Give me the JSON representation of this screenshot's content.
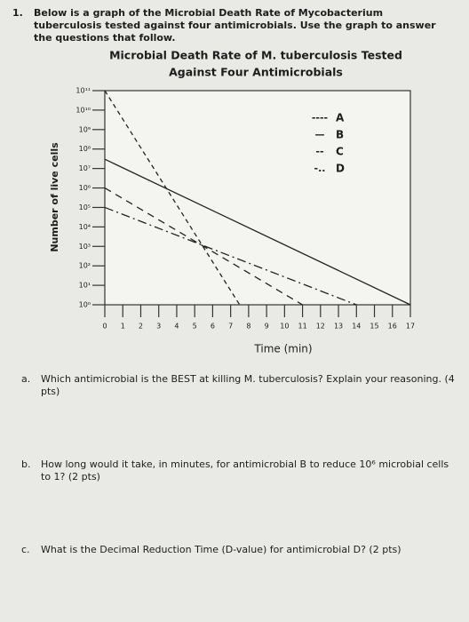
{
  "question": {
    "number": "1.",
    "text": "Below is a graph of the Microbial Death Rate of Mycobacterium tuberculosis tested against four antimicrobials. Use the graph to answer the questions that follow."
  },
  "chart_data": {
    "type": "line",
    "title": "Microbial Death Rate of M. tuberculosis Tested",
    "subtitle": "Against Four Antimicrobials",
    "x_label": "Time (min)",
    "y_label": "Number of live cells",
    "log_y": true,
    "xlim": [
      0,
      17
    ],
    "xticks": [
      0,
      1,
      2,
      3,
      4,
      5,
      6,
      7,
      8,
      9,
      10,
      11,
      12,
      13,
      14,
      15,
      16,
      17
    ],
    "ylim": [
      1,
      100000000000
    ],
    "yticks": [
      {
        "value": 1,
        "label": "10⁰"
      },
      {
        "value": 10,
        "label": "10¹"
      },
      {
        "value": 100,
        "label": "10²"
      },
      {
        "value": 1000,
        "label": "10³"
      },
      {
        "value": 10000,
        "label": "10⁴"
      },
      {
        "value": 100000,
        "label": "10⁵"
      },
      {
        "value": 1000000,
        "label": "10⁶"
      },
      {
        "value": 10000000,
        "label": "10⁷"
      },
      {
        "value": 100000000,
        "label": "10⁸"
      },
      {
        "value": 1000000000,
        "label": "10⁹"
      },
      {
        "value": 10000000000,
        "label": "10¹⁰"
      },
      {
        "value": 100000000000,
        "label": "10¹¹"
      }
    ],
    "series": [
      {
        "name": "A",
        "legend_symbol": "----",
        "dash": "5,4",
        "color": "#222",
        "x": [
          0,
          7.5
        ],
        "values": [
          100000000000,
          1
        ]
      },
      {
        "name": "B",
        "legend_symbol": "—",
        "dash": "none",
        "color": "#222",
        "x": [
          0,
          17
        ],
        "values": [
          30000000,
          1
        ]
      },
      {
        "name": "C",
        "legend_symbol": "--",
        "dash": "8,6",
        "color": "#222",
        "x": [
          0,
          11
        ],
        "values": [
          1000000,
          1
        ]
      },
      {
        "name": "D",
        "legend_symbol": "-..",
        "dash": "10,4,2,4",
        "color": "#222",
        "x": [
          0,
          14
        ],
        "values": [
          100000,
          1
        ]
      }
    ]
  },
  "questions": [
    {
      "label": "a.",
      "text": "Which antimicrobial is the BEST at killing M. tuberculosis? Explain your reasoning. (4 pts)"
    },
    {
      "label": "b.",
      "text": "How long would it take, in minutes, for antimicrobial B to reduce 10⁶ microbial cells to 1? (2 pts)"
    },
    {
      "label": "c.",
      "text": "What is the Decimal Reduction Time (D-value) for antimicrobial D? (2 pts)"
    }
  ]
}
